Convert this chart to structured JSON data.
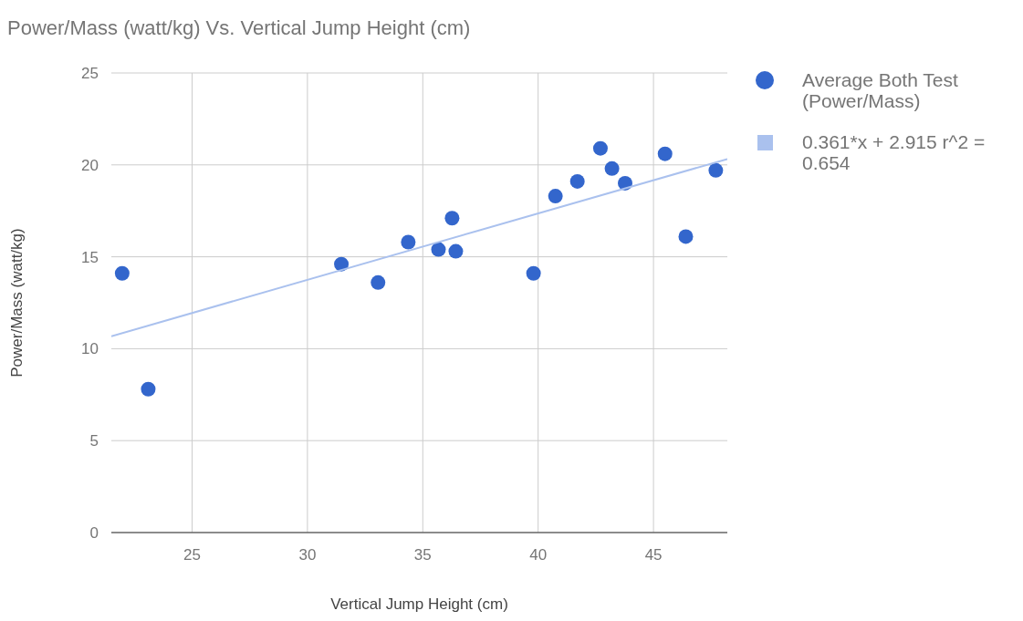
{
  "chart_data": {
    "type": "scatter",
    "title": "Power/Mass (watt/kg) Vs. Vertical Jump Height (cm)",
    "xlabel": "Vertical Jump Height (cm)",
    "ylabel": "Power/Mass (watt/kg)",
    "xlim": [
      21.5,
      48.2
    ],
    "xticks": [
      25,
      30,
      35,
      40,
      45
    ],
    "ylim": [
      0,
      25
    ],
    "yticks": [
      0,
      5,
      10,
      15,
      20,
      25
    ],
    "grid": true,
    "legend": "right",
    "series": [
      {
        "name": "Average Both Test (Power/Mass)",
        "color": "#3366cc",
        "marker": "circle",
        "x": [
          21.97,
          23.1,
          31.47,
          33.06,
          34.37,
          35.68,
          36.27,
          36.43,
          39.8,
          40.75,
          41.7,
          42.7,
          43.2,
          43.77,
          45.5,
          46.4,
          47.7
        ],
        "values": [
          14.1,
          7.8,
          14.6,
          13.6,
          15.8,
          15.4,
          17.1,
          15.3,
          14.1,
          18.3,
          19.1,
          20.9,
          19.8,
          19.0,
          20.6,
          16.1,
          19.7
        ]
      },
      {
        "name": "0.361*x + 2.915 r^2 = 0.654",
        "type": "line",
        "marker": "none",
        "color": "#aac1ee",
        "x": [
          21.5,
          48.2
        ],
        "values": [
          10.68,
          20.32
        ]
      }
    ]
  }
}
